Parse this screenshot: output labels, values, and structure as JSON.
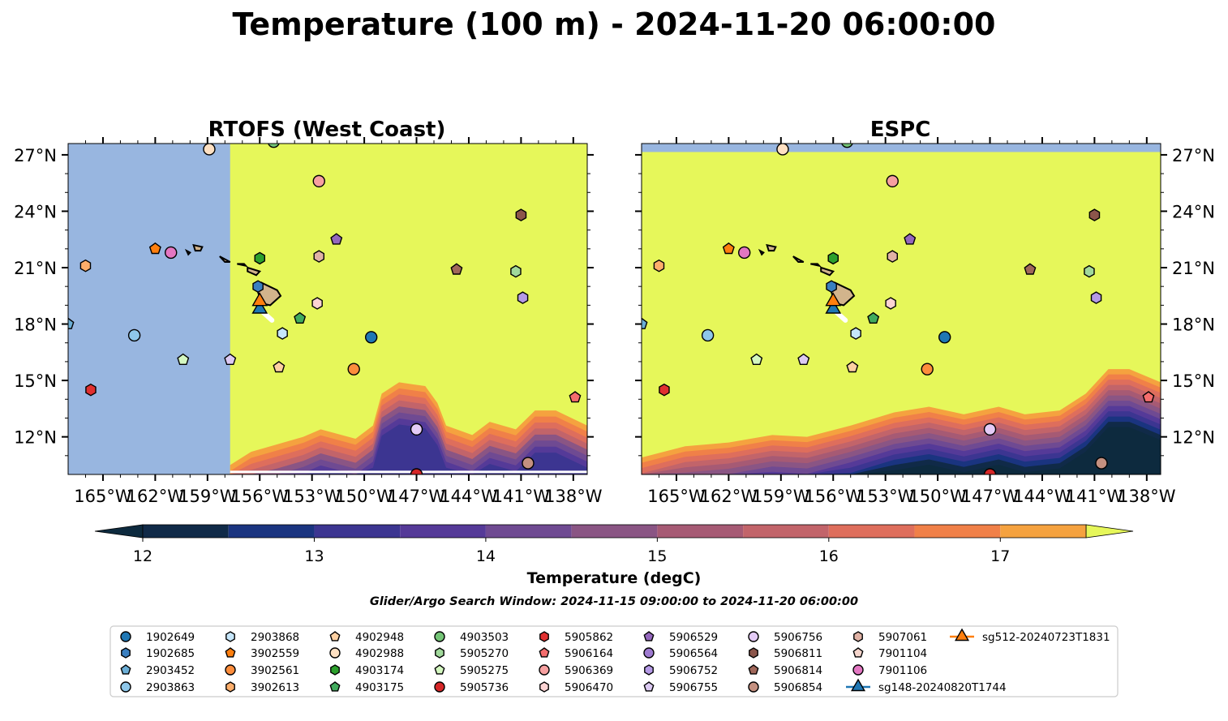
{
  "figure": {
    "title": "Temperature (100 m) - 2024-11-20 06:00:00",
    "subtitle": "Glider/Argo Search Window: 2024-11-15 09:00:00 to 2024-11-20 06:00:00"
  },
  "chart_data": {
    "type": "heatmap",
    "panels": [
      {
        "title": "RTOFS (West Coast)"
      },
      {
        "title": "ESPC"
      }
    ],
    "xlim": [
      -167,
      -137.2
    ],
    "ylim": [
      10,
      27.6
    ],
    "x_ticks": [
      -165,
      -162,
      -159,
      -156,
      -153,
      -150,
      -147,
      -144,
      -141,
      -138
    ],
    "x_tick_labels": [
      "165°W",
      "162°W",
      "159°W",
      "156°W",
      "153°W",
      "150°W",
      "147°W",
      "144°W",
      "141°W",
      "138°W"
    ],
    "y_ticks": [
      12,
      15,
      18,
      21,
      24,
      27
    ],
    "y_tick_labels": [
      "12°N",
      "15°N",
      "18°N",
      "21°N",
      "24°N",
      "27°N"
    ],
    "colorbar": {
      "label": "Temperature (degC)",
      "ticks": [
        12,
        13,
        14,
        15,
        16,
        17
      ],
      "levels": [
        11.75,
        12,
        12.5,
        13,
        13.5,
        14,
        14.5,
        15,
        15.5,
        16,
        16.5,
        17,
        17.5,
        17.75
      ],
      "colors": [
        "#0d2a3e",
        "#102a48",
        "#1a3480",
        "#3c3591",
        "#553a98",
        "#6f4a92",
        "#8a5584",
        "#a65a74",
        "#c2646a",
        "#de6e5c",
        "#f08048",
        "#f5a23f",
        "#f4cb48",
        "#e6f75a"
      ],
      "extend": "both"
    },
    "rtofs_land_mask_east_lon": -157.7,
    "markers": [
      {
        "id": "1902649",
        "lon": -149.6,
        "lat": 17.3,
        "shape": "circle",
        "color": "#1f77b4"
      },
      {
        "id": "1902685",
        "lon": -156.1,
        "lat": 20.0,
        "shape": "hexagon",
        "color": "#3a7fc0"
      },
      {
        "id": "2903452",
        "lon": -167.0,
        "lat": 18.0,
        "shape": "pentagon",
        "color": "#6baed6"
      },
      {
        "id": "2903863",
        "lon": -163.2,
        "lat": 17.4,
        "shape": "circle",
        "color": "#8ec7ea"
      },
      {
        "id": "2903868",
        "lon": -154.7,
        "lat": 17.5,
        "shape": "hexagon",
        "color": "#c6e6fa"
      },
      {
        "id": "3902559",
        "lon": -162.0,
        "lat": 22.0,
        "shape": "pentagon",
        "color": "#ff7f0e"
      },
      {
        "id": "3902561",
        "lon": -150.6,
        "lat": 15.6,
        "shape": "circle",
        "color": "#fd8d3c"
      },
      {
        "id": "3902613",
        "lon": -166.0,
        "lat": 21.1,
        "shape": "hexagon",
        "color": "#fdae6b"
      },
      {
        "id": "4902948",
        "lon": -154.9,
        "lat": 15.7,
        "shape": "pentagon",
        "color": "#fdd0a2"
      },
      {
        "id": "4902988",
        "lon": -158.9,
        "lat": 27.3,
        "shape": "circle",
        "color": "#fee0c2"
      },
      {
        "id": "4903174",
        "lon": -156.0,
        "lat": 21.5,
        "shape": "hexagon",
        "color": "#2ca02c"
      },
      {
        "id": "4903175",
        "lon": -153.7,
        "lat": 18.3,
        "shape": "pentagon",
        "color": "#41ab5d"
      },
      {
        "id": "4903503",
        "lon": -155.2,
        "lat": 27.7,
        "shape": "circle",
        "color": "#74c476"
      },
      {
        "id": "5905270",
        "lon": -141.3,
        "lat": 20.8,
        "shape": "hexagon",
        "color": "#a1d99b"
      },
      {
        "id": "5905275",
        "lon": -160.4,
        "lat": 16.1,
        "shape": "pentagon",
        "color": "#d4f7c0"
      },
      {
        "id": "5905736",
        "lon": -147.0,
        "lat": 10.0,
        "shape": "circle",
        "color": "#d62728"
      },
      {
        "id": "5905862",
        "lon": -165.7,
        "lat": 14.5,
        "shape": "hexagon",
        "color": "#e03030"
      },
      {
        "id": "5906164",
        "lon": -137.9,
        "lat": 14.1,
        "shape": "pentagon",
        "color": "#f46d6d"
      },
      {
        "id": "5906369",
        "lon": -152.6,
        "lat": 25.6,
        "shape": "circle",
        "color": "#f7a0a0"
      },
      {
        "id": "5906470",
        "lon": -152.7,
        "lat": 19.1,
        "shape": "hexagon",
        "color": "#fcd3d3"
      },
      {
        "id": "5906529",
        "lon": -151.6,
        "lat": 22.5,
        "shape": "pentagon",
        "color": "#9467bd"
      },
      {
        "id": "5906564",
        "lon": -165.0,
        "lat": 12.5,
        "shape": "circle",
        "color": "#9e7ad0",
        "hidden": true
      },
      {
        "id": "5906752",
        "lon": -140.9,
        "lat": 19.4,
        "shape": "hexagon",
        "color": "#b59ae6"
      },
      {
        "id": "5906755",
        "lon": -157.7,
        "lat": 16.1,
        "shape": "pentagon",
        "color": "#dccaf3"
      },
      {
        "id": "5906756",
        "lon": -147.0,
        "lat": 12.4,
        "shape": "circle",
        "color": "#e4cbf6"
      },
      {
        "id": "5906811",
        "lon": -141.0,
        "lat": 23.8,
        "shape": "hexagon",
        "color": "#8c564b"
      },
      {
        "id": "5906814",
        "lon": -144.7,
        "lat": 20.9,
        "shape": "pentagon",
        "color": "#a0675a"
      },
      {
        "id": "5906854",
        "lon": -140.6,
        "lat": 10.6,
        "shape": "circle",
        "color": "#c49080"
      },
      {
        "id": "5907061",
        "lon": -152.6,
        "lat": 21.6,
        "shape": "hexagon",
        "color": "#e0b2a5"
      },
      {
        "id": "7901104",
        "lon": -157.7,
        "lat": 16.1,
        "shape": "pentagon",
        "color": "#f5d5cc",
        "hidden": true
      },
      {
        "id": "7901106",
        "lon": -161.1,
        "lat": 21.8,
        "shape": "circle",
        "color": "#e377c2"
      },
      {
        "id": "sg148-20240820T1744",
        "lon": -156.0,
        "lat": 18.8,
        "shape": "triangle",
        "color": "#1f77b4",
        "line": true
      },
      {
        "id": "sg512-20240723T1831",
        "lon": -156.0,
        "lat": 19.2,
        "shape": "triangle",
        "color": "#ff7f0e",
        "line": true
      }
    ],
    "legend": {
      "columns": 9,
      "rows": 4,
      "placement": "bottom"
    }
  }
}
